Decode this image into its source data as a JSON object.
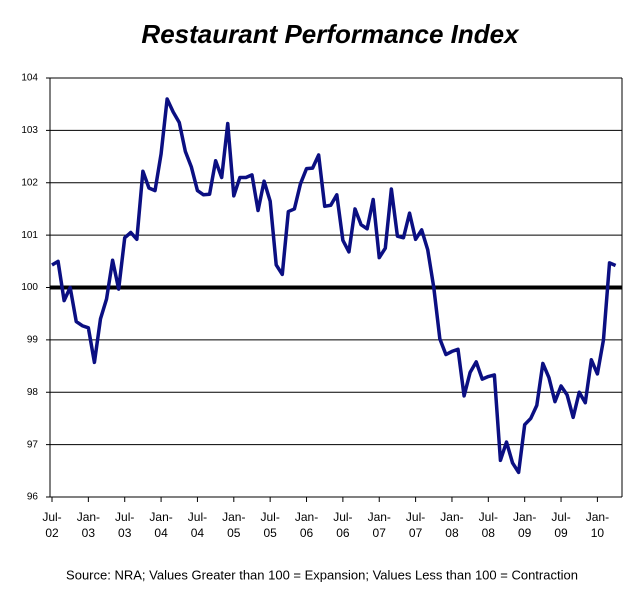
{
  "chart_data": {
    "type": "line",
    "title": "Restaurant Performance Index",
    "source": "Source: NRA; Values Greater than 100 = Expansion; Values Less than 100 = Contraction",
    "categories": [
      "Jul-02",
      null,
      null,
      null,
      null,
      null,
      "Jan-03",
      null,
      null,
      null,
      null,
      null,
      "Jul-03",
      null,
      null,
      null,
      null,
      null,
      "Jan-04",
      null,
      null,
      null,
      null,
      null,
      "Jul-04",
      null,
      null,
      null,
      null,
      null,
      "Jan-05",
      null,
      null,
      null,
      null,
      null,
      "Jul-05",
      null,
      null,
      null,
      null,
      null,
      "Jan-06",
      null,
      null,
      null,
      null,
      null,
      "Jul-06",
      null,
      null,
      null,
      null,
      null,
      "Jan-07",
      null,
      null,
      null,
      null,
      null,
      "Jul-07",
      null,
      null,
      null,
      null,
      null,
      "Jan-08",
      null,
      null,
      null,
      null,
      null,
      "Jul-08",
      null,
      null,
      null,
      null,
      null,
      "Jan-09",
      null,
      null,
      null,
      null,
      null,
      "Jul-09",
      null,
      null,
      null,
      null,
      null,
      "Jan-10",
      null,
      null,
      null
    ],
    "series": [
      {
        "color": "#0b0f82",
        "values": [
          100.43,
          100.5,
          99.75,
          100.0,
          99.35,
          99.27,
          99.23,
          98.57,
          99.4,
          99.78,
          100.52,
          99.97,
          100.95,
          101.05,
          100.92,
          102.22,
          101.9,
          101.85,
          102.55,
          103.6,
          103.35,
          103.15,
          102.6,
          102.3,
          101.85,
          101.77,
          101.78,
          102.42,
          102.1,
          103.13,
          101.75,
          102.1,
          102.1,
          102.15,
          101.47,
          102.03,
          101.65,
          100.43,
          100.25,
          101.45,
          101.5,
          101.98,
          102.27,
          102.28,
          102.53,
          101.55,
          101.57,
          101.77,
          100.9,
          100.68,
          101.5,
          101.2,
          101.12,
          101.68,
          100.57,
          100.75,
          101.88,
          100.98,
          100.95,
          101.42,
          100.92,
          101.1,
          100.72,
          100.0,
          99.02,
          98.72,
          98.78,
          98.82,
          97.93,
          98.38,
          98.58,
          98.25,
          98.3,
          98.33,
          96.7,
          97.05,
          96.65,
          96.47,
          97.38,
          97.5,
          97.75,
          98.55,
          98.28,
          97.82,
          98.12,
          97.95,
          97.52,
          98.0,
          97.8,
          98.62,
          98.35,
          99.0,
          100.47,
          100.42
        ]
      }
    ],
    "ylim": [
      96,
      104
    ],
    "yticks": [
      96,
      97,
      98,
      99,
      100,
      101,
      102,
      103,
      104
    ],
    "reference_line": 100,
    "grid": true
  }
}
